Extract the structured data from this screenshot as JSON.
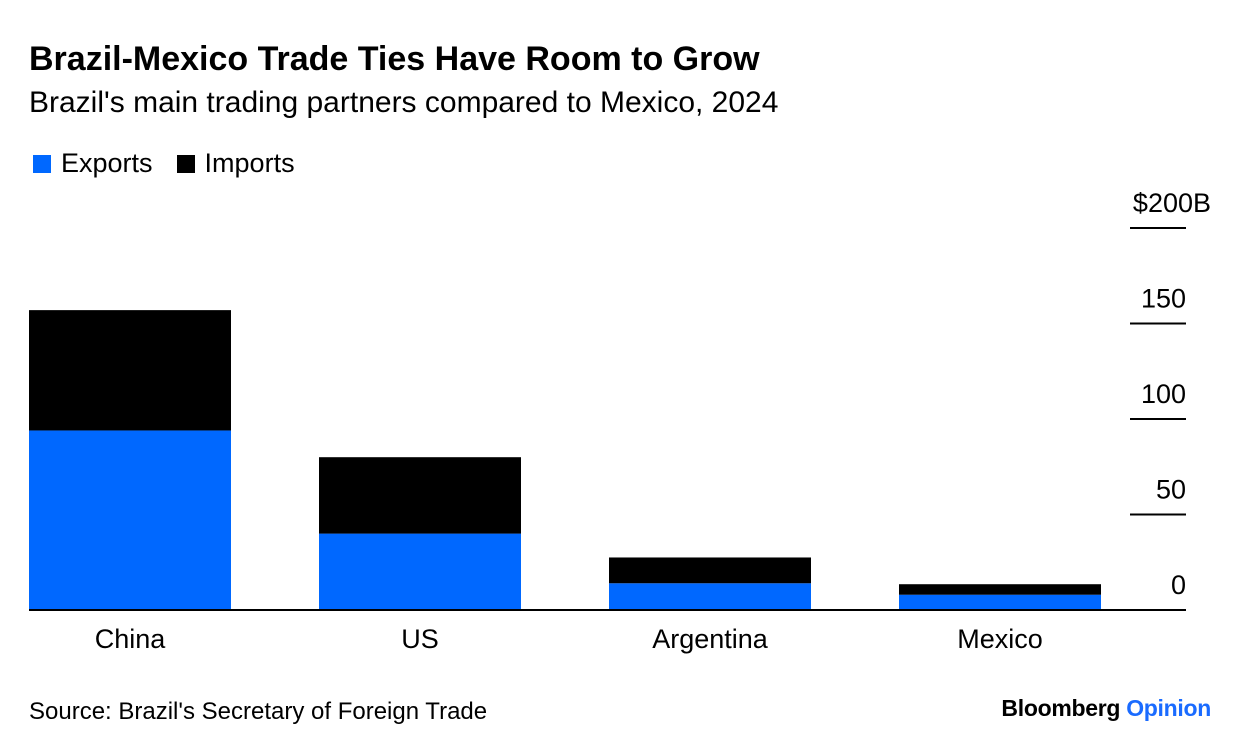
{
  "colors": {
    "exports": "#0068ff",
    "imports": "#000000",
    "brand_accent": "#1a6bff"
  },
  "header": {
    "title": "Brazil-Mexico Trade Ties Have Room to Grow",
    "subtitle": "Brazil's main trading partners compared to Mexico, 2024"
  },
  "footer": {
    "source": "Source: Brazil's Secretary of Foreign Trade",
    "brand_main": "Bloomberg",
    "brand_accent": "Opinion"
  },
  "chart_data": {
    "type": "bar",
    "stacked": true,
    "categories": [
      "China",
      "US",
      "Argentina",
      "Mexico"
    ],
    "series": [
      {
        "name": "Exports",
        "values": [
          94,
          40,
          14,
          8
        ]
      },
      {
        "name": "Imports",
        "values": [
          63,
          40,
          13.5,
          5.5
        ]
      }
    ],
    "ylim": [
      0,
      200
    ],
    "yticks": [
      0,
      50,
      100,
      150,
      200
    ],
    "ytick_labels": [
      "0",
      "50",
      "100",
      "150",
      "$200B"
    ],
    "yaxis_side": "right",
    "legend_position": "top-left",
    "grid": false
  }
}
